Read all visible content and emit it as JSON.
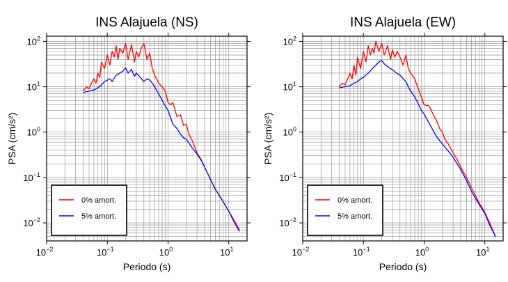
{
  "chart_data": [
    {
      "type": "line",
      "title": "INS Alajuela (NS)",
      "xlabel": "Periodo (s)",
      "ylabel": "PSA (cm/s²)",
      "xscale": "log",
      "yscale": "log",
      "xlim": [
        0.01,
        20
      ],
      "ylim": [
        0.004,
        130
      ],
      "grid": true,
      "legend_position": "bottom-left",
      "x_ticks": [
        {
          "base": "10",
          "exp": "−2"
        },
        {
          "base": "10",
          "exp": "−1"
        },
        {
          "base": "10",
          "exp": "0"
        },
        {
          "base": "10",
          "exp": "1"
        }
      ],
      "y_ticks": [
        {
          "base": "10",
          "exp": "−2"
        },
        {
          "base": "10",
          "exp": "−1"
        },
        {
          "base": "10",
          "exp": "0"
        },
        {
          "base": "10",
          "exp": "1"
        },
        {
          "base": "10",
          "exp": "2"
        }
      ],
      "series": [
        {
          "name": "0% amort.",
          "color": "#ff0000",
          "x": [
            0.04,
            0.045,
            0.05,
            0.055,
            0.06,
            0.065,
            0.07,
            0.075,
            0.08,
            0.09,
            0.1,
            0.11,
            0.12,
            0.13,
            0.14,
            0.15,
            0.16,
            0.18,
            0.2,
            0.22,
            0.25,
            0.28,
            0.3,
            0.33,
            0.36,
            0.4,
            0.45,
            0.5,
            0.55,
            0.6,
            0.7,
            0.8,
            0.9,
            1.0,
            1.1,
            1.2,
            1.4,
            1.6,
            1.8,
            2.0,
            2.2,
            2.5,
            3.0,
            3.5,
            4.0,
            5.0,
            6.0,
            7.0,
            8.0,
            10.0,
            12.0,
            15.0
          ],
          "y": [
            8,
            10,
            9,
            12,
            15,
            12,
            20,
            16,
            35,
            25,
            50,
            30,
            60,
            45,
            80,
            40,
            70,
            55,
            90,
            40,
            85,
            35,
            60,
            45,
            70,
            90,
            40,
            55,
            25,
            18,
            12,
            10,
            8,
            4.5,
            4,
            4.5,
            2.2,
            2.4,
            1.4,
            1.5,
            0.9,
            0.65,
            0.35,
            0.25,
            0.17,
            0.09,
            0.055,
            0.04,
            0.03,
            0.018,
            0.012,
            0.007
          ]
        },
        {
          "name": "5% amort.",
          "color": "#0000ff",
          "x": [
            0.04,
            0.05,
            0.06,
            0.07,
            0.08,
            0.09,
            0.1,
            0.11,
            0.12,
            0.14,
            0.16,
            0.18,
            0.2,
            0.22,
            0.25,
            0.28,
            0.3,
            0.35,
            0.4,
            0.45,
            0.5,
            0.55,
            0.6,
            0.7,
            0.8,
            0.9,
            1.0,
            1.2,
            1.4,
            1.6,
            1.8,
            2.0,
            2.5,
            3.0,
            3.5,
            4.0,
            5.0,
            6.0,
            7.0,
            8.0,
            10.0,
            12.0,
            15.0
          ],
          "y": [
            7.5,
            8,
            8.5,
            9.5,
            11,
            13,
            14,
            15,
            13,
            18,
            20,
            22,
            26,
            20,
            24,
            17,
            20,
            16,
            13,
            15,
            14,
            12,
            10,
            7,
            5,
            3.8,
            3,
            1.5,
            1.2,
            0.9,
            0.75,
            0.7,
            0.45,
            0.33,
            0.24,
            0.17,
            0.09,
            0.055,
            0.04,
            0.03,
            0.018,
            0.011,
            0.0065
          ]
        }
      ]
    },
    {
      "type": "line",
      "title": "INS Alajuela (EW)",
      "xlabel": "Periodo (s)",
      "ylabel": "PSA (cm/s²)",
      "xscale": "log",
      "yscale": "log",
      "xlim": [
        0.01,
        20
      ],
      "ylim": [
        0.004,
        130
      ],
      "grid": true,
      "legend_position": "bottom-left",
      "x_ticks": [
        {
          "base": "10",
          "exp": "−2"
        },
        {
          "base": "10",
          "exp": "−1"
        },
        {
          "base": "10",
          "exp": "0"
        },
        {
          "base": "10",
          "exp": "1"
        }
      ],
      "y_ticks": [
        {
          "base": "10",
          "exp": "−2"
        },
        {
          "base": "10",
          "exp": "−1"
        },
        {
          "base": "10",
          "exp": "0"
        },
        {
          "base": "10",
          "exp": "1"
        },
        {
          "base": "10",
          "exp": "2"
        }
      ],
      "series": [
        {
          "name": "0% amort.",
          "color": "#ff0000",
          "x": [
            0.04,
            0.045,
            0.05,
            0.055,
            0.06,
            0.065,
            0.07,
            0.075,
            0.08,
            0.09,
            0.1,
            0.11,
            0.12,
            0.13,
            0.14,
            0.15,
            0.16,
            0.18,
            0.2,
            0.22,
            0.25,
            0.28,
            0.3,
            0.33,
            0.36,
            0.4,
            0.45,
            0.5,
            0.55,
            0.6,
            0.7,
            0.8,
            0.9,
            1.0,
            1.2,
            1.4,
            1.6,
            1.8,
            2.0,
            2.2,
            2.5,
            3.0,
            3.5,
            4.0,
            5.0,
            6.0,
            7.0,
            8.0,
            10.0,
            12.0,
            15.0
          ],
          "y": [
            10,
            12,
            11,
            15,
            20,
            15,
            30,
            18,
            45,
            25,
            60,
            35,
            80,
            50,
            70,
            55,
            100,
            60,
            90,
            50,
            80,
            40,
            65,
            45,
            60,
            45,
            30,
            50,
            25,
            20,
            15,
            9,
            6,
            4,
            3.8,
            2.5,
            1.8,
            1.2,
            1.0,
            0.7,
            0.55,
            0.35,
            0.25,
            0.17,
            0.1,
            0.06,
            0.04,
            0.028,
            0.017,
            0.01,
            0.005
          ]
        },
        {
          "name": "5% amort.",
          "color": "#0000ff",
          "x": [
            0.04,
            0.05,
            0.06,
            0.07,
            0.08,
            0.09,
            0.1,
            0.11,
            0.12,
            0.14,
            0.16,
            0.18,
            0.2,
            0.22,
            0.25,
            0.28,
            0.3,
            0.35,
            0.4,
            0.45,
            0.5,
            0.55,
            0.6,
            0.7,
            0.8,
            0.9,
            1.0,
            1.2,
            1.4,
            1.6,
            1.8,
            2.0,
            2.5,
            3.0,
            3.5,
            4.0,
            5.0,
            6.0,
            7.0,
            8.0,
            10.0,
            12.0,
            15.0
          ],
          "y": [
            9.5,
            10,
            10.5,
            12,
            13,
            15,
            16,
            18,
            20,
            25,
            30,
            35,
            38,
            32,
            28,
            25,
            24,
            20,
            18,
            15,
            13,
            10,
            8,
            6,
            4.2,
            3,
            2.5,
            1.6,
            1.1,
            0.8,
            0.65,
            0.55,
            0.38,
            0.28,
            0.2,
            0.15,
            0.085,
            0.05,
            0.035,
            0.026,
            0.016,
            0.009,
            0.005
          ]
        }
      ]
    }
  ]
}
